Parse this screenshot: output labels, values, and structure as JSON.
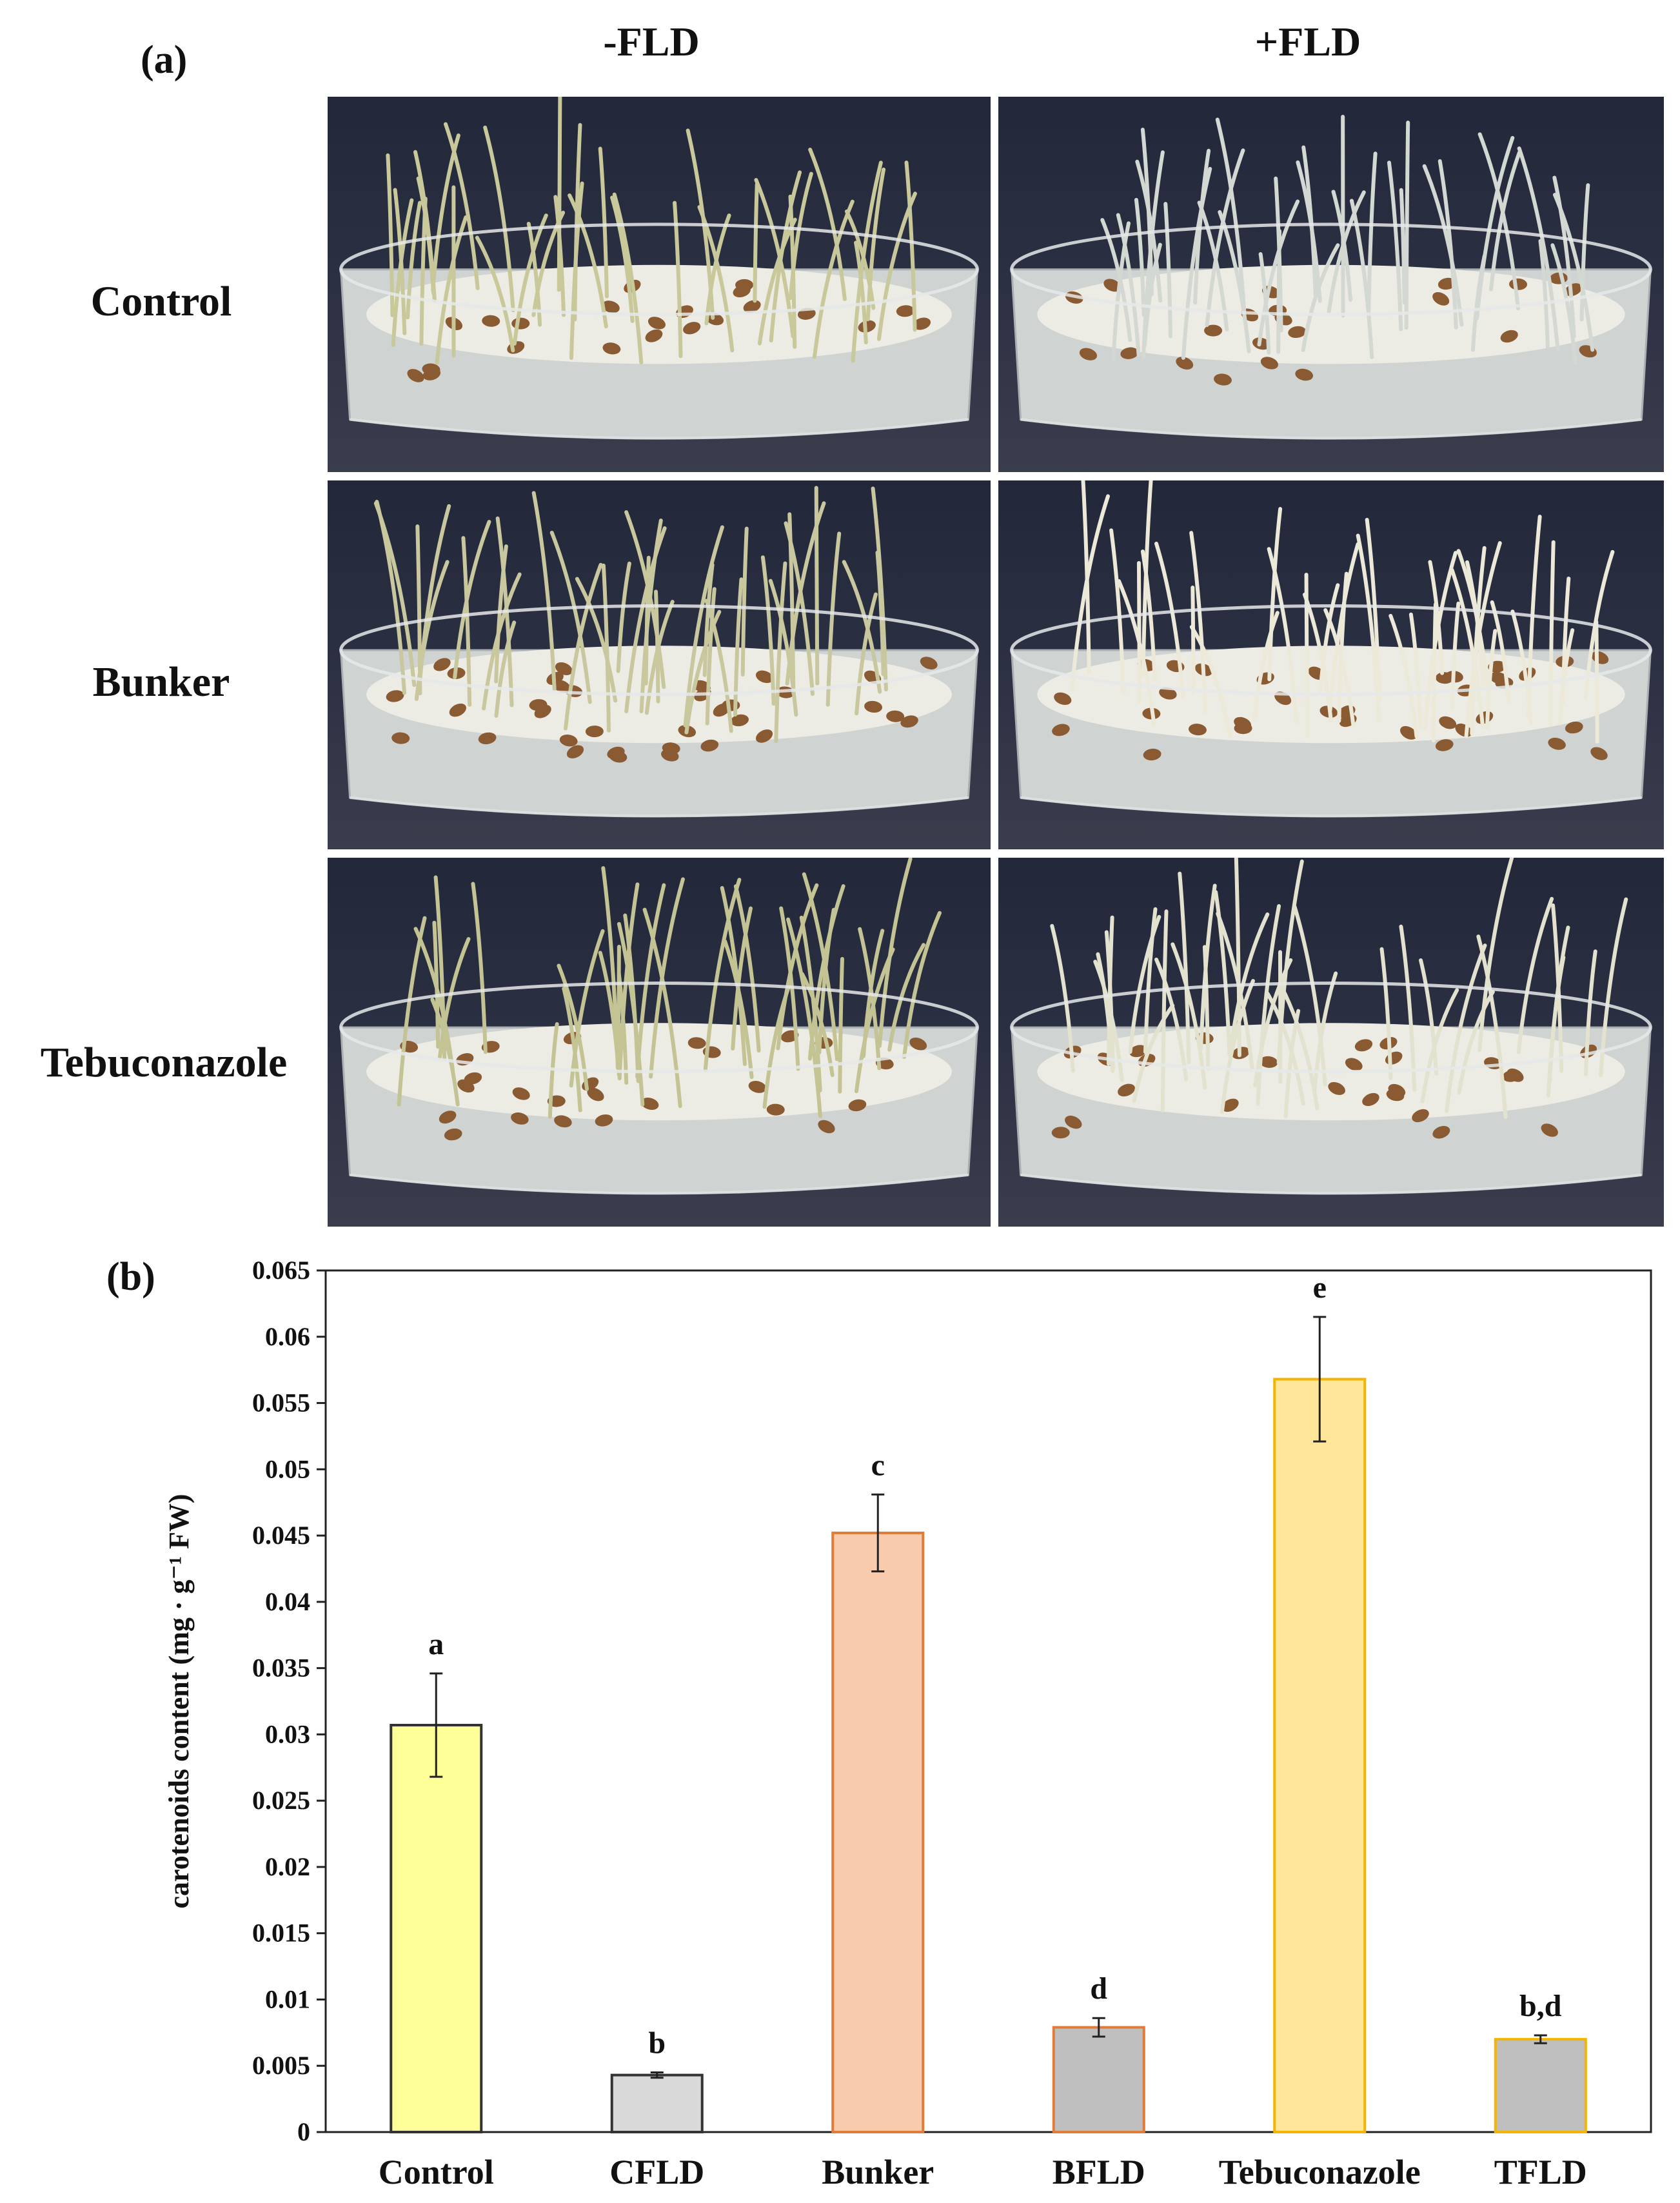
{
  "figure": {
    "panel_a_label": "(a)",
    "panel_b_label": "(b)",
    "columns": [
      "-FLD",
      "+FLD"
    ],
    "rows": [
      "Control",
      "Bunker",
      "Tebuconazole"
    ]
  },
  "photos": [
    {
      "row": "Control",
      "col": "-FLD",
      "sprout_tone": "#c8c89a",
      "seeds": "sparse"
    },
    {
      "row": "Control",
      "col": "+FLD",
      "sprout_tone": "#d4d8d2",
      "seeds": "sparse"
    },
    {
      "row": "Bunker",
      "col": "-FLD",
      "sprout_tone": "#c9c79e",
      "seeds": "dense"
    },
    {
      "row": "Bunker",
      "col": "+FLD",
      "sprout_tone": "#ece9d8",
      "seeds": "dense"
    },
    {
      "row": "Tebuconazole",
      "col": "-FLD",
      "sprout_tone": "#c4c394",
      "seeds": "medium"
    },
    {
      "row": "Tebuconazole",
      "col": "+FLD",
      "sprout_tone": "#e2e2cf",
      "seeds": "medium"
    }
  ],
  "chart_data": {
    "type": "bar",
    "categories": [
      "Control",
      "CFLD",
      "Bunker",
      "BFLD",
      "Tebuconazole",
      "TFLD"
    ],
    "values": [
      0.0307,
      0.0043,
      0.0452,
      0.0079,
      0.0568,
      0.007
    ],
    "errors": [
      0.0039,
      0.0002,
      0.0029,
      0.0007,
      0.0047,
      0.0003
    ],
    "significance_letters": [
      "a",
      "b",
      "c",
      "d",
      "e",
      "b,d"
    ],
    "fill_colors": [
      "#ffff99",
      "#d9d9d9",
      "#f8cbad",
      "#bfbfbf",
      "#ffe699",
      "#bfbfbf"
    ],
    "stroke_colors": [
      "#333333",
      "#333333",
      "#e07b39",
      "#e07b39",
      "#f4b400",
      "#f4b400"
    ],
    "ylabel": "carotenoids content (mg · g⁻¹ FW)",
    "xlabel": "",
    "ylim": [
      0,
      0.065
    ],
    "yticks": [
      "0",
      "0.005",
      "0.01",
      "0.015",
      "0.02",
      "0.025",
      "0.03",
      "0.035",
      "0.04",
      "0.045",
      "0.05",
      "0.055",
      "0.06",
      "0.065"
    ],
    "grid": false,
    "legend": "none"
  }
}
